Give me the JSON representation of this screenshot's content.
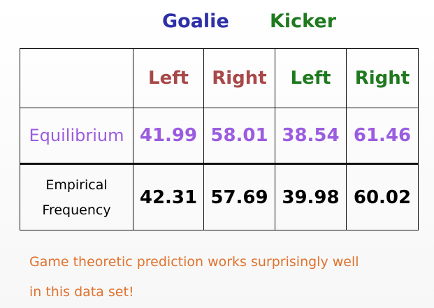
{
  "header": {
    "goalie": "Goalie",
    "kicker": "Kicker"
  },
  "table": {
    "columns": [
      "Left",
      "Right",
      "Left",
      "Right"
    ],
    "rows": [
      {
        "label": "Equilibrium",
        "values": [
          "41.99",
          "58.01",
          "38.54",
          "61.46"
        ]
      },
      {
        "label_line1": "Empirical",
        "label_line2": "Frequency",
        "values": [
          "42.31",
          "57.69",
          "39.98",
          "60.02"
        ]
      }
    ]
  },
  "note": {
    "line1": "Game theoretic prediction works surprisingly well",
    "line2": "in this data set!"
  },
  "colors": {
    "goalie": "#2d2fa8",
    "kicker": "#1f7a1f",
    "goalie_cols": "#a84848",
    "kicker_cols": "#1f7a1f",
    "equilibrium": "#9b5ce0",
    "note": "#e0722e"
  }
}
